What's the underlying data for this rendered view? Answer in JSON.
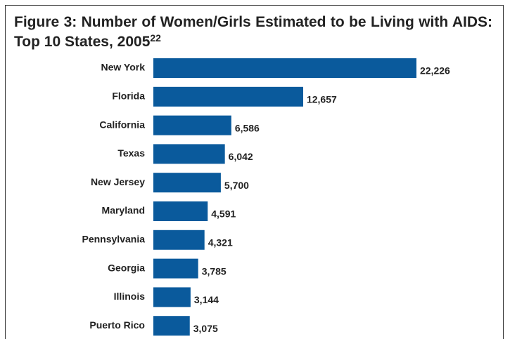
{
  "chart_data": {
    "type": "bar",
    "orientation": "horizontal",
    "title": "Figure 3: Number of Women/Girls Estimated to be Living with AIDS: Top 10 States, 2005",
    "title_note": "22",
    "categories": [
      "New York",
      "Florida",
      "California",
      "Texas",
      "New Jersey",
      "Maryland",
      "Pennsylvania",
      "Georgia",
      "Illinois",
      "Puerto Rico"
    ],
    "values": [
      22226,
      12657,
      6586,
      6042,
      5700,
      4591,
      4321,
      3785,
      3144,
      3075
    ],
    "value_labels": [
      "22,226",
      "12,657",
      "6,586",
      "6,042",
      "5,700",
      "4,591",
      "4,321",
      "3,785",
      "3,144",
      "3,075"
    ],
    "color": "#0a5a9c"
  }
}
